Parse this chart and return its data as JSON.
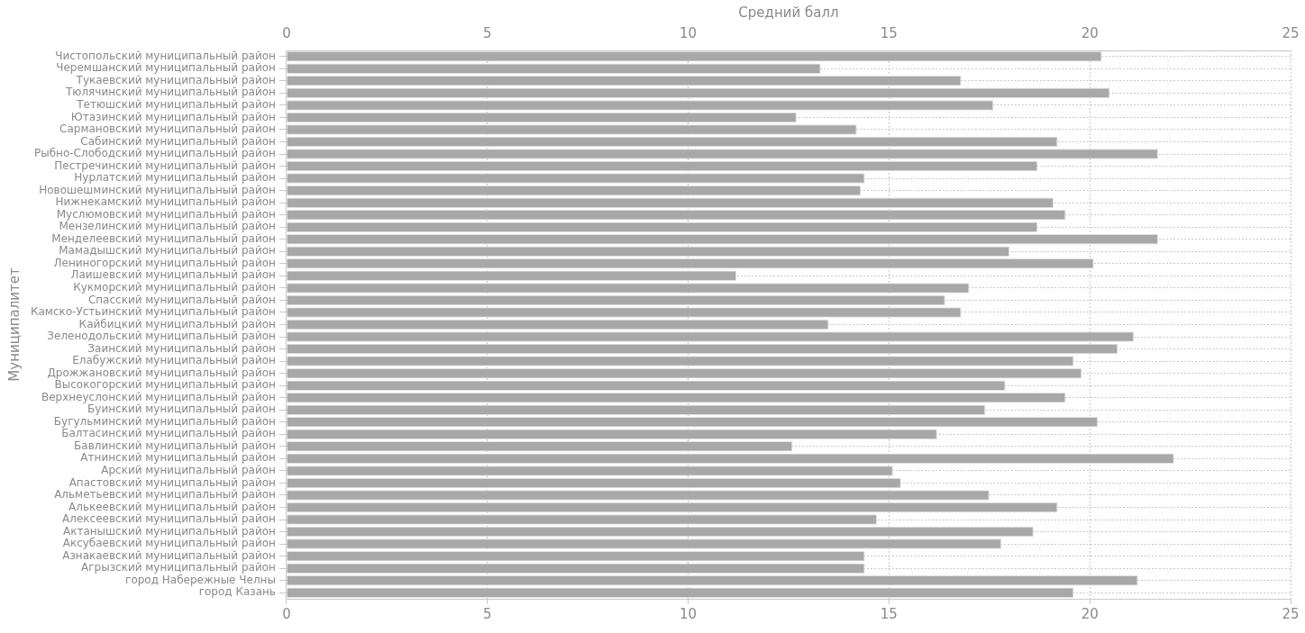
{
  "chart_data": {
    "type": "bar",
    "orientation": "horizontal",
    "x2label": "Средний балл",
    "ylabel": "Муниципалитет",
    "categories": [
      "Чистопольский муниципальный район",
      "Черемшанский муниципальный район",
      "Тукаевский муниципальный район",
      "Тюлячинский муниципальный район",
      "Тетюшский муниципальный район",
      "Ютазинский муниципальный район",
      "Сармановский муниципальный район",
      "Сабинский муниципальный район",
      "Рыбно-Слободский муниципальный район",
      "Пестречинский муниципальный район",
      "Нурлатский муниципальный район",
      "Новошешминский муниципальный район",
      "Нижнекамский муниципальный район",
      "Муслюмовский муниципальный район",
      "Мензелинский муниципальный район",
      "Менделеевский муниципальный район",
      "Мамадышский муниципальный район",
      "Лениногорский муниципальный район",
      "Лаишевский муниципальный район",
      "Кукморский муниципальный район",
      "Спасский муниципальный район",
      "Камско-Устьинский муниципальный район",
      "Кайбицкий муниципальный район",
      "Зеленодольский муниципальный район",
      "Заинский муниципальный район",
      "Елабужский муниципальный район",
      "Дрожжановский муниципальный район",
      "Высокогорский муниципальный район",
      "Верхнеуслонский муниципальный район",
      "Буинский муниципальный район",
      "Бугульминский муниципальный район",
      "Балтасинский муниципальный район",
      "Бавлинский муниципальный район",
      "Атнинский муниципальный район",
      "Арский муниципальный район",
      "Апастовский муниципальный район",
      "Альметьевский муниципальный район",
      "Алькеевский муниципальный район",
      "Алексеевский муниципальный район",
      "Актанышский муниципальный район",
      "Аксубаевский муниципальный район",
      "Азнакаевский муниципальный район",
      "Агрызский муниципальный район",
      "город Набережные Челны",
      "город Казань"
    ],
    "values": [
      20.3,
      13.3,
      16.8,
      20.5,
      17.6,
      12.7,
      14.2,
      19.2,
      21.7,
      18.7,
      14.4,
      14.3,
      19.1,
      19.4,
      18.7,
      21.7,
      18.0,
      20.1,
      11.2,
      17.0,
      16.4,
      16.8,
      13.5,
      21.1,
      20.7,
      19.6,
      19.8,
      17.9,
      19.4,
      17.4,
      20.2,
      16.2,
      12.6,
      22.1,
      15.1,
      15.3,
      17.5,
      19.2,
      14.7,
      18.6,
      17.8,
      14.4,
      14.4,
      21.2,
      19.6
    ],
    "color": "#a8a8a8",
    "xlim": [
      0,
      25
    ],
    "xticks": [
      0,
      5,
      10,
      15,
      20,
      25
    ],
    "x2lim": [
      0,
      25
    ],
    "x2ticks": [
      0,
      5,
      10,
      15,
      20,
      25
    ],
    "grid": true,
    "legend": false
  }
}
